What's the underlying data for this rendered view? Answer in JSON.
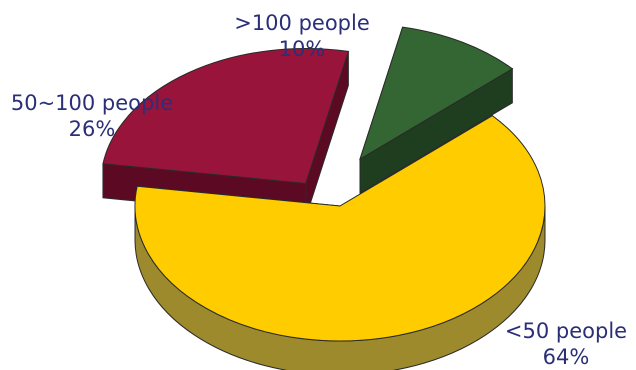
{
  "chart_data": {
    "type": "pie",
    "title": "",
    "style": "3d-exploded",
    "slices": [
      {
        "label": ">100 people",
        "value": 10,
        "value_label": "10%",
        "color": "#336633",
        "side_color": "#1f3d1f"
      },
      {
        "label": "<50 people",
        "value": 64,
        "value_label": "64%",
        "color": "#ffcc00",
        "side_color": "#9c8a2c"
      },
      {
        "label": "50~100 people",
        "value": 26,
        "value_label": "26%",
        "color": "#99143a",
        "side_color": "#5c0a24"
      }
    ]
  }
}
